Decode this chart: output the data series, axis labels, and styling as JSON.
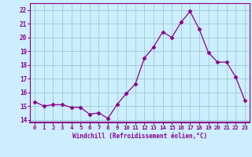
{
  "x": [
    0,
    1,
    2,
    3,
    4,
    5,
    6,
    7,
    8,
    9,
    10,
    11,
    12,
    13,
    14,
    15,
    16,
    17,
    18,
    19,
    20,
    21,
    22,
    23
  ],
  "y": [
    15.3,
    15.0,
    15.1,
    15.1,
    14.9,
    14.9,
    14.4,
    14.5,
    14.1,
    15.1,
    15.9,
    16.6,
    18.5,
    19.3,
    20.4,
    20.0,
    21.1,
    21.9,
    20.6,
    18.9,
    18.2,
    18.2,
    17.1,
    15.4
  ],
  "line_color": "#8B008B",
  "marker": "D",
  "marker_size": 2.5,
  "bg_color": "#cceeff",
  "grid_color": "#99cccc",
  "xlabel": "Windchill (Refroidissement éolien,°C)",
  "xlabel_color": "#8B008B",
  "tick_color": "#8B008B",
  "ylim": [
    13.8,
    22.5
  ],
  "xlim": [
    -0.5,
    23.5
  ],
  "yticks": [
    14,
    15,
    16,
    17,
    18,
    19,
    20,
    21,
    22
  ],
  "xticks": [
    0,
    1,
    2,
    3,
    4,
    5,
    6,
    7,
    8,
    9,
    10,
    11,
    12,
    13,
    14,
    15,
    16,
    17,
    18,
    19,
    20,
    21,
    22,
    23
  ],
  "xtick_labels": [
    "0",
    "1",
    "2",
    "3",
    "4",
    "5",
    "6",
    "7",
    "8",
    "9",
    "10",
    "11",
    "12",
    "13",
    "14",
    "15",
    "16",
    "17",
    "18",
    "19",
    "20",
    "21",
    "22",
    "23"
  ]
}
